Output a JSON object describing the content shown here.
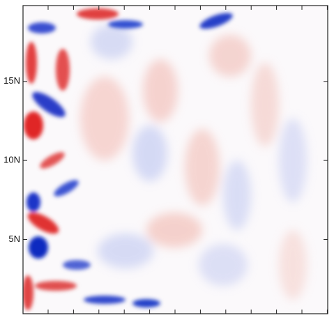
{
  "chart_data": {
    "type": "map",
    "ylim": [
      0.3,
      19.8
    ],
    "yticks": [
      {
        "value": 5,
        "label": "5N"
      },
      {
        "value": 10,
        "label": "10N"
      },
      {
        "value": 15,
        "label": "15N"
      }
    ]
  }
}
